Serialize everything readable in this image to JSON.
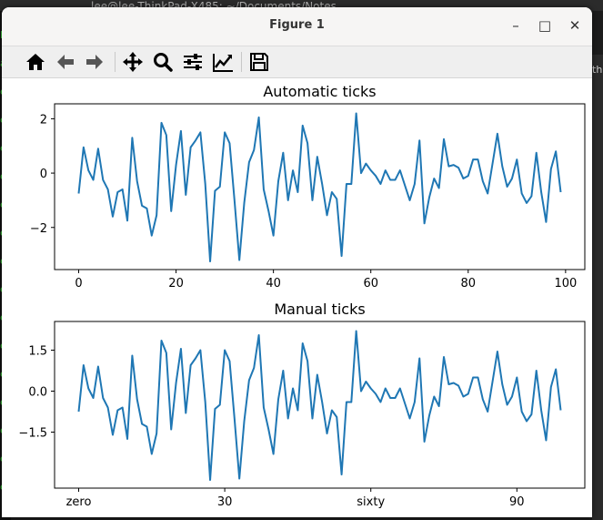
{
  "background": {
    "terminal_title": "lee@lee-ThinkPad-X485: ~/Documents/Notes",
    "left_strip_chars": [
      "h",
      "a",
      "ee",
      "ee",
      "ee",
      "ee",
      "ee",
      "ee",
      "ee",
      "ee",
      "ee",
      "ee",
      "ee",
      "ee",
      "ee",
      "ee",
      "ee"
    ],
    "right_strip_text": "th"
  },
  "window": {
    "title": "Figure 1",
    "minimize_label": "–",
    "maximize_label": "□",
    "close_label": "✕"
  },
  "toolbar": {
    "buttons": [
      {
        "name": "home-button",
        "icon": "home-icon"
      },
      {
        "name": "back-button",
        "icon": "arrow-left-icon"
      },
      {
        "name": "forward-button",
        "icon": "arrow-right-icon"
      },
      {
        "name": "pan-button",
        "icon": "move-icon"
      },
      {
        "name": "zoom-button",
        "icon": "magnifier-icon"
      },
      {
        "name": "configure-subplots-button",
        "icon": "sliders-icon"
      },
      {
        "name": "edit-axes-button",
        "icon": "line-chart-icon"
      },
      {
        "name": "save-button",
        "icon": "floppy-disk-icon"
      }
    ]
  },
  "colors": {
    "line": "#1f77b4",
    "axes": "#000000"
  },
  "chart_data": [
    {
      "type": "line",
      "title": "Automatic ticks",
      "xlabel": "",
      "ylabel": "",
      "xlim": [
        -4.95,
        103.95
      ],
      "ylim": [
        -3.55,
        2.55
      ],
      "xticks": [
        0,
        20,
        40,
        60,
        80,
        100
      ],
      "xtick_labels": [
        "0",
        "20",
        "40",
        "60",
        "80",
        "100"
      ],
      "yticks": [
        -2,
        0,
        2
      ],
      "ytick_labels": [
        "−2",
        "0",
        "2"
      ],
      "grid": false,
      "series": [
        {
          "values": [
            -0.75,
            0.95,
            0.1,
            -0.25,
            0.9,
            -0.25,
            -0.6,
            -1.6,
            -0.7,
            -0.6,
            -1.75,
            1.3,
            -0.3,
            -1.2,
            -1.3,
            -2.3,
            -1.55,
            1.85,
            1.4,
            -1.4,
            0.3,
            1.55,
            -0.8,
            0.95,
            1.2,
            1.5,
            -0.4,
            -3.25,
            -0.65,
            -0.5,
            1.5,
            1.1,
            -1.0,
            -3.2,
            -1.1,
            0.4,
            0.85,
            2.05,
            -0.6,
            -1.4,
            -2.3,
            -0.3,
            0.75,
            -1.0,
            0.1,
            -0.7,
            1.75,
            1.1,
            -1.0,
            0.6,
            -0.4,
            -1.55,
            -0.7,
            -0.95,
            -3.05,
            -0.4,
            -0.4,
            2.2,
            0.0,
            0.35,
            0.1,
            -0.1,
            -0.4,
            0.1,
            -0.25,
            -0.25,
            0.1,
            -0.45,
            -1.0,
            -0.4,
            1.2,
            -1.85,
            -0.9,
            -0.2,
            -0.55,
            1.25,
            0.25,
            0.3,
            0.2,
            -0.2,
            -0.1,
            0.5,
            0.5,
            -0.3,
            -0.75,
            0.35,
            1.45,
            0.25,
            -0.5,
            -0.2,
            0.5,
            -0.75,
            -1.1,
            -0.85,
            0.75,
            -0.7,
            -1.8,
            0.15,
            0.8,
            -0.7
          ]
        }
      ]
    },
    {
      "type": "line",
      "title": "Manual ticks",
      "xlabel": "",
      "ylabel": "",
      "xlim": [
        -4.95,
        103.95
      ],
      "ylim": [
        -3.55,
        2.55
      ],
      "xticks": [
        0,
        30,
        60,
        90
      ],
      "xtick_labels": [
        "zero",
        "30",
        "sixty",
        "90"
      ],
      "yticks": [
        -1.5,
        0.0,
        1.5
      ],
      "ytick_labels": [
        "−1.5",
        "0.0",
        "1.5"
      ],
      "grid": false,
      "series": [
        {
          "values": [
            -0.75,
            0.95,
            0.1,
            -0.25,
            0.9,
            -0.25,
            -0.6,
            -1.6,
            -0.7,
            -0.6,
            -1.75,
            1.3,
            -0.3,
            -1.2,
            -1.3,
            -2.3,
            -1.55,
            1.85,
            1.4,
            -1.4,
            0.3,
            1.55,
            -0.8,
            0.95,
            1.2,
            1.5,
            -0.4,
            -3.25,
            -0.65,
            -0.5,
            1.5,
            1.1,
            -1.0,
            -3.2,
            -1.1,
            0.4,
            0.85,
            2.05,
            -0.6,
            -1.4,
            -2.3,
            -0.3,
            0.75,
            -1.0,
            0.1,
            -0.7,
            1.75,
            1.1,
            -1.0,
            0.6,
            -0.4,
            -1.55,
            -0.7,
            -0.95,
            -3.05,
            -0.4,
            -0.4,
            2.2,
            0.0,
            0.35,
            0.1,
            -0.1,
            -0.4,
            0.1,
            -0.25,
            -0.25,
            0.1,
            -0.45,
            -1.0,
            -0.4,
            1.2,
            -1.85,
            -0.9,
            -0.2,
            -0.55,
            1.25,
            0.25,
            0.3,
            0.2,
            -0.2,
            -0.1,
            0.5,
            0.5,
            -0.3,
            -0.75,
            0.35,
            1.45,
            0.25,
            -0.5,
            -0.2,
            0.5,
            -0.75,
            -1.1,
            -0.85,
            0.75,
            -0.7,
            -1.8,
            0.15,
            0.8,
            -0.7
          ]
        }
      ]
    }
  ]
}
